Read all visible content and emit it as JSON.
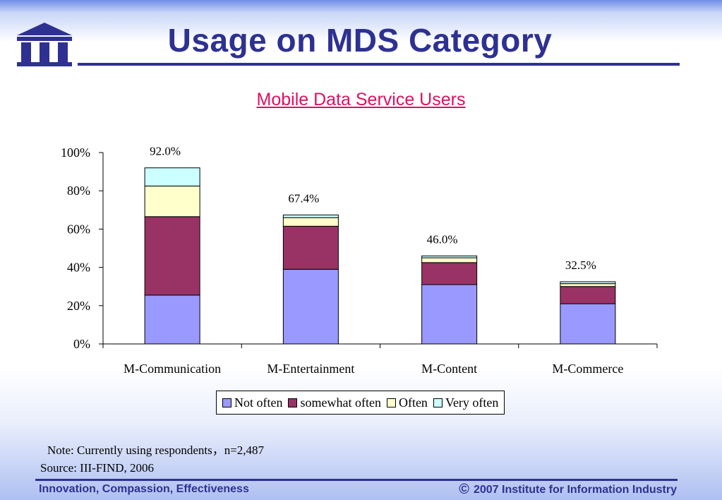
{
  "slide": {
    "title": "Usage on MDS Category",
    "note": "Note: Currently using respondents，n=2,487",
    "source": "Source: III-FIND, 2006",
    "footer_left": "Innovation, Compassion, Effectiveness",
    "footer_right": "2007 Institute for Information Industry",
    "copyright_icon": "©",
    "colors": {
      "title": "#2e3192",
      "subtitle": "#e0105f"
    }
  },
  "chart_data": {
    "type": "bar",
    "stacked": true,
    "title": "Mobile Data Service Users",
    "categories": [
      "M-Communication",
      "M-Entertainment",
      "M-Content",
      "M-Commerce"
    ],
    "series": [
      {
        "name": "Not often",
        "color": "#9999ff",
        "values": [
          25.5,
          39.0,
          31.0,
          21.0
        ]
      },
      {
        "name": "somewhat often",
        "color": "#993366",
        "values": [
          41.0,
          22.5,
          11.5,
          9.0
        ]
      },
      {
        "name": "Often",
        "color": "#ffffcc",
        "values": [
          16.0,
          4.5,
          2.5,
          1.5
        ]
      },
      {
        "name": "Very often",
        "color": "#ccffff",
        "values": [
          9.5,
          1.4,
          1.0,
          1.0
        ]
      }
    ],
    "totals": [
      "92.0%",
      "67.4%",
      "46.0%",
      "32.5%"
    ],
    "ylim": [
      0,
      100
    ],
    "yticks": [
      0,
      20,
      40,
      60,
      80,
      100
    ],
    "ytick_labels": [
      "0%",
      "20%",
      "40%",
      "60%",
      "80%",
      "100%"
    ],
    "legend_position": "bottom",
    "grid": false
  }
}
